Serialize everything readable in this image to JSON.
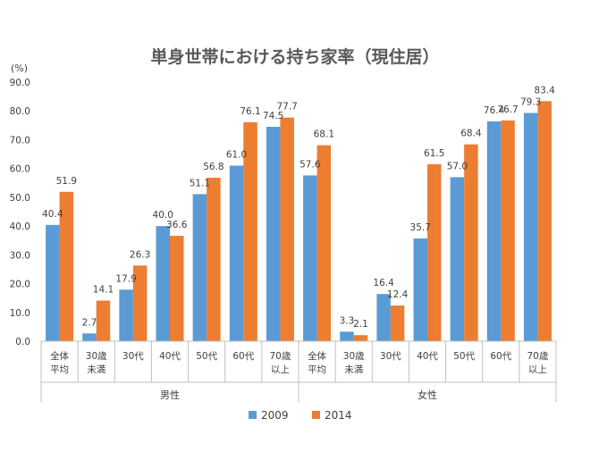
{
  "chart_data": {
    "type": "bar",
    "title": "単身世帯における持ち家率（現住居）",
    "y_unit": "(%)",
    "ylim": [
      0,
      90
    ],
    "y_ticks": [
      "0.0",
      "10.0",
      "20.0",
      "30.0",
      "40.0",
      "50.0",
      "60.0",
      "70.0",
      "80.0",
      "90.0"
    ],
    "grid": false,
    "legend_position": "bottom",
    "groups": [
      {
        "name": "男性",
        "categories": [
          [
            "全体",
            "平均"
          ],
          [
            "30歳",
            "未満"
          ],
          [
            "30代"
          ],
          [
            "40代"
          ],
          [
            "50代"
          ],
          [
            "60代"
          ],
          [
            "70歳",
            "以上"
          ]
        ]
      },
      {
        "name": "女性",
        "categories": [
          [
            "全体",
            "平均"
          ],
          [
            "30歳",
            "未満"
          ],
          [
            "30代"
          ],
          [
            "40代"
          ],
          [
            "50代"
          ],
          [
            "60代"
          ],
          [
            "70歳",
            "以上"
          ]
        ]
      }
    ],
    "series": [
      {
        "name": "2009",
        "color": "#5b9bd5",
        "values": [
          40.4,
          2.7,
          17.9,
          40.0,
          51.1,
          61.0,
          74.5,
          57.6,
          3.3,
          16.4,
          35.7,
          57.0,
          76.4,
          79.3
        ],
        "labels": [
          "40.4",
          "2.7",
          "17.9",
          "40.0",
          "51.1",
          "61.0",
          "74.5",
          "57.6",
          "3.3",
          "16.4",
          "35.7",
          "57.0",
          "76.4",
          "79.3"
        ]
      },
      {
        "name": "2014",
        "color": "#ed7d31",
        "values": [
          51.9,
          14.1,
          26.3,
          36.6,
          56.8,
          76.1,
          77.7,
          68.1,
          2.1,
          12.4,
          61.5,
          68.4,
          76.7,
          83.4
        ],
        "labels": [
          "51.9",
          "14.1",
          "26.3",
          "36.6",
          "56.8",
          "76.1",
          "77.7",
          "68.1",
          "2.1",
          "12.4",
          "61.5",
          "68.4",
          "76.7",
          "83.4"
        ]
      }
    ]
  }
}
